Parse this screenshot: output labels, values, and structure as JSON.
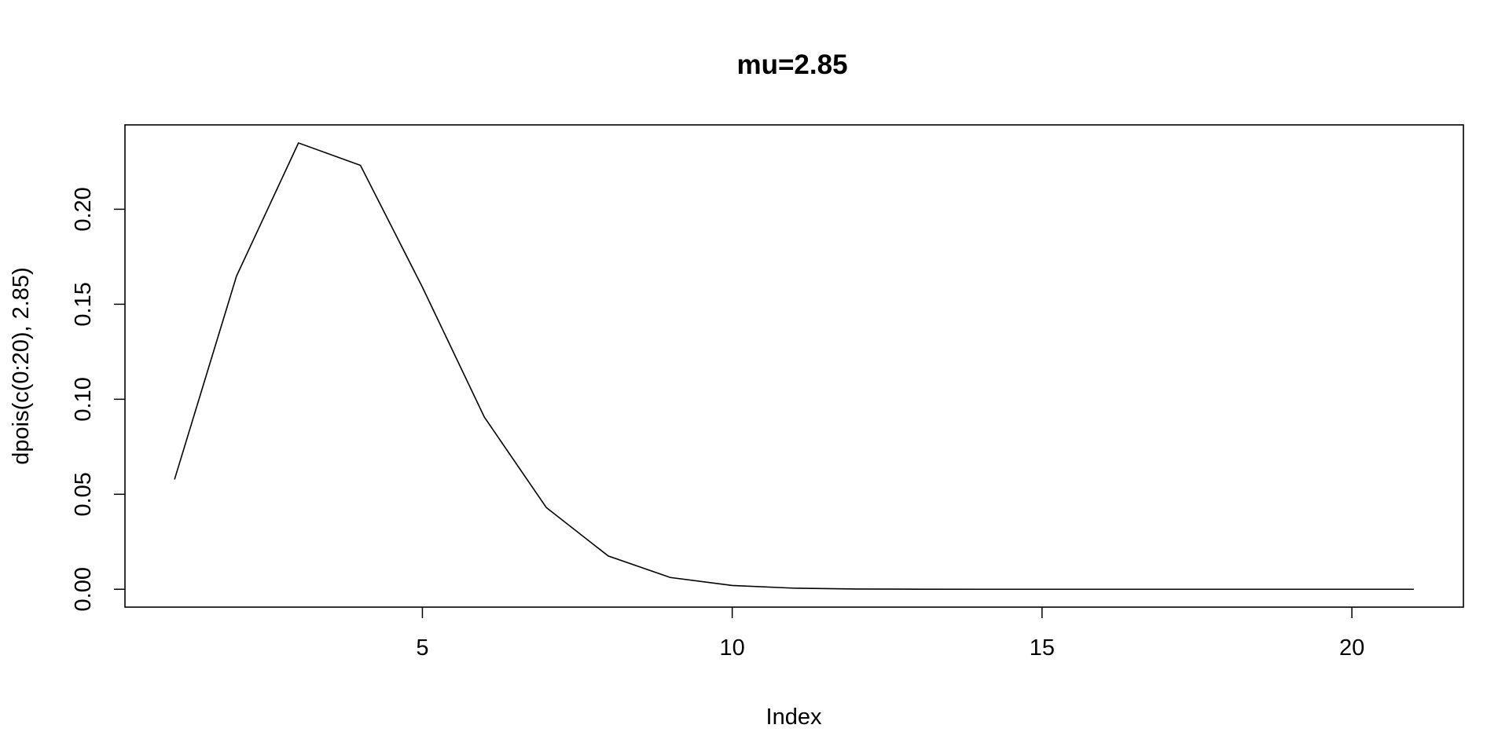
{
  "chart_data": {
    "type": "line",
    "title": "mu=2.85",
    "xlabel": "Index",
    "ylabel": "dpois(c(0:20), 2.85)",
    "xlim": [
      0.2,
      21.8
    ],
    "ylim": [
      -0.0094,
      0.2444
    ],
    "x_ticks": [
      5,
      10,
      15,
      20
    ],
    "x_tick_labels": [
      "5",
      "10",
      "15",
      "20"
    ],
    "y_ticks": [
      0,
      0.05,
      0.1,
      0.15,
      0.2
    ],
    "y_tick_labels": [
      "0.00",
      "0.05",
      "0.10",
      "0.15",
      "0.20"
    ],
    "grid": false,
    "legend": "none",
    "line_color": "#000000",
    "series": [
      {
        "x": [
          1,
          2,
          3,
          4,
          5,
          6,
          7,
          8,
          9,
          10,
          11,
          12,
          13,
          14,
          15,
          16,
          17,
          18,
          19,
          20,
          21
        ],
        "values": [
          0.0578,
          0.1648,
          0.2349,
          0.2231,
          0.159,
          0.0906,
          0.043,
          0.0175,
          0.0062,
          0.002,
          0.00057,
          0.00015,
          3.2e-05,
          6.6e-06,
          1.3e-06,
          2.4e-07,
          4e-08,
          6e-09,
          1e-09,
          1e-10,
          0.0
        ]
      }
    ]
  }
}
